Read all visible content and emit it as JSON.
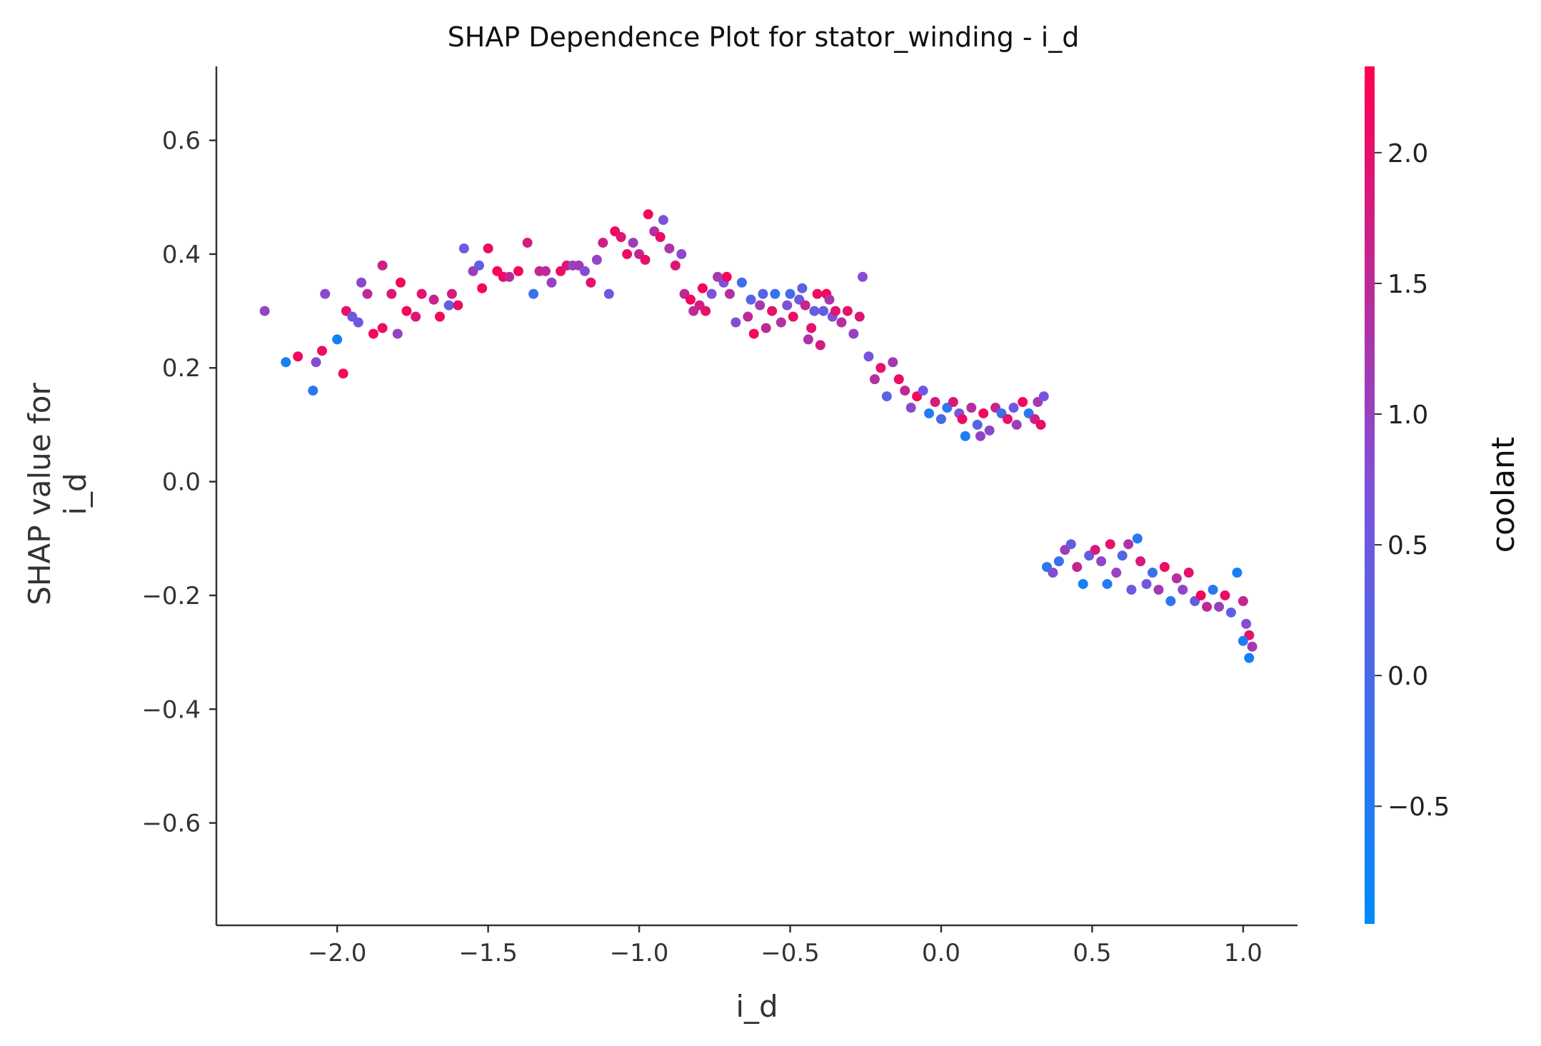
{
  "chart_data": {
    "type": "scatter",
    "title": "SHAP Dependence Plot for stator_winding - i_d",
    "xlabel": "i_d",
    "ylabel": [
      "SHAP value for",
      "i_d"
    ],
    "xlim": [
      -2.4,
      1.18
    ],
    "ylim": [
      -0.78,
      0.73
    ],
    "x_ticks": [
      -2.0,
      -1.5,
      -1.0,
      -0.5,
      0.0,
      0.5,
      1.0
    ],
    "x_tick_labels": [
      "−2.0",
      "−1.5",
      "−1.0",
      "−0.5",
      "0.0",
      "0.5",
      "1.0"
    ],
    "y_ticks": [
      -0.6,
      -0.4,
      -0.2,
      0.0,
      0.2,
      0.4,
      0.6
    ],
    "y_tick_labels": [
      "−0.6",
      "−0.4",
      "−0.2",
      "0.0",
      "0.2",
      "0.4",
      "0.6"
    ],
    "grid": false,
    "colorbar": {
      "label": "coolant",
      "range": [
        -0.95,
        2.33
      ],
      "ticks": [
        -0.5,
        0.0,
        0.5,
        1.0,
        1.5,
        2.0
      ],
      "tick_labels": [
        "−0.5",
        "0.0",
        "0.5",
        "1.0",
        "1.5",
        "2.0"
      ],
      "color_low": "#008afb",
      "color_mid": "#7c52dc",
      "color_high": "#ff0051"
    },
    "series": [
      {
        "points": [
          [
            -2.24,
            0.3,
            1.0
          ],
          [
            -2.17,
            0.21,
            -0.6
          ],
          [
            -2.13,
            0.22,
            2.2
          ],
          [
            -2.08,
            0.16,
            -0.4
          ],
          [
            -2.07,
            0.21,
            0.8
          ],
          [
            -2.05,
            0.23,
            2.1
          ],
          [
            -2.0,
            0.25,
            -0.7
          ],
          [
            -2.04,
            0.33,
            0.9
          ],
          [
            -1.98,
            0.19,
            2.2
          ],
          [
            -1.97,
            0.3,
            2.0
          ],
          [
            -1.95,
            0.29,
            0.6
          ],
          [
            -1.93,
            0.28,
            0.5
          ],
          [
            -1.92,
            0.35,
            0.9
          ],
          [
            -1.9,
            0.33,
            1.5
          ],
          [
            -1.88,
            0.26,
            2.2
          ],
          [
            -1.85,
            0.38,
            1.7
          ],
          [
            -1.85,
            0.27,
            2.1
          ],
          [
            -1.82,
            0.33,
            1.9
          ],
          [
            -1.8,
            0.26,
            1.0
          ],
          [
            -1.79,
            0.35,
            2.2
          ],
          [
            -1.77,
            0.3,
            2.2
          ],
          [
            -1.74,
            0.29,
            1.9
          ],
          [
            -1.72,
            0.33,
            2.0
          ],
          [
            -1.68,
            0.32,
            1.6
          ],
          [
            -1.66,
            0.29,
            2.2
          ],
          [
            -1.63,
            0.31,
            0.3
          ],
          [
            -1.62,
            0.33,
            1.8
          ],
          [
            -1.6,
            0.31,
            2.1
          ],
          [
            -1.58,
            0.41,
            0.6
          ],
          [
            -1.55,
            0.37,
            1.1
          ],
          [
            -1.53,
            0.38,
            0.4
          ],
          [
            -1.52,
            0.34,
            2.2
          ],
          [
            -1.5,
            0.41,
            2.1
          ],
          [
            -1.47,
            0.37,
            2.3
          ],
          [
            -1.45,
            0.36,
            2.2
          ],
          [
            -1.43,
            0.36,
            1.5
          ],
          [
            -1.4,
            0.37,
            2.2
          ],
          [
            -1.37,
            0.42,
            1.8
          ],
          [
            -1.35,
            0.33,
            -0.2
          ],
          [
            -1.33,
            0.37,
            1.6
          ],
          [
            -1.31,
            0.37,
            1.5
          ],
          [
            -1.29,
            0.35,
            1.0
          ],
          [
            -1.26,
            0.37,
            2.1
          ],
          [
            -1.24,
            0.38,
            1.9
          ],
          [
            -1.22,
            0.38,
            1.0
          ],
          [
            -1.2,
            0.38,
            1.2
          ],
          [
            -1.18,
            0.37,
            0.8
          ],
          [
            -1.16,
            0.35,
            2.0
          ],
          [
            -1.14,
            0.39,
            1.0
          ],
          [
            -1.12,
            0.42,
            1.7
          ],
          [
            -1.1,
            0.33,
            0.5
          ],
          [
            -1.08,
            0.44,
            2.2
          ],
          [
            -1.06,
            0.43,
            1.9
          ],
          [
            -1.04,
            0.4,
            2.1
          ],
          [
            -1.02,
            0.42,
            1.1
          ],
          [
            -1.0,
            0.4,
            1.6
          ],
          [
            -0.98,
            0.39,
            2.0
          ],
          [
            -0.97,
            0.47,
            2.2
          ],
          [
            -0.95,
            0.44,
            1.4
          ],
          [
            -0.93,
            0.43,
            2.1
          ],
          [
            -0.92,
            0.46,
            0.7
          ],
          [
            -0.9,
            0.41,
            1.3
          ],
          [
            -0.88,
            0.38,
            1.9
          ],
          [
            -0.86,
            0.4,
            0.9
          ],
          [
            -0.85,
            0.33,
            1.5
          ],
          [
            -0.83,
            0.32,
            2.2
          ],
          [
            -0.82,
            0.3,
            1.5
          ],
          [
            -0.8,
            0.31,
            1.7
          ],
          [
            -0.79,
            0.34,
            2.2
          ],
          [
            -0.78,
            0.3,
            2.0
          ],
          [
            -0.76,
            0.33,
            0.7
          ],
          [
            -0.74,
            0.36,
            1.2
          ],
          [
            -0.72,
            0.35,
            0.6
          ],
          [
            -0.71,
            0.36,
            2.2
          ],
          [
            -0.7,
            0.33,
            1.4
          ],
          [
            -0.68,
            0.28,
            0.8
          ],
          [
            -0.66,
            0.35,
            -0.1
          ],
          [
            -0.64,
            0.29,
            1.5
          ],
          [
            -0.63,
            0.32,
            0.2
          ],
          [
            -0.62,
            0.26,
            2.2
          ],
          [
            -0.6,
            0.31,
            1.2
          ],
          [
            -0.59,
            0.33,
            0.2
          ],
          [
            -0.58,
            0.27,
            1.5
          ],
          [
            -0.56,
            0.3,
            2.0
          ],
          [
            -0.55,
            0.33,
            -0.3
          ],
          [
            -0.53,
            0.28,
            1.4
          ],
          [
            -0.51,
            0.31,
            0.7
          ],
          [
            -0.5,
            0.33,
            0.0
          ],
          [
            -0.49,
            0.29,
            2.1
          ],
          [
            -0.47,
            0.32,
            0.5
          ],
          [
            -0.46,
            0.34,
            0.3
          ],
          [
            -0.45,
            0.31,
            1.6
          ],
          [
            -0.44,
            0.25,
            1.3
          ],
          [
            -0.43,
            0.27,
            2.0
          ],
          [
            -0.42,
            0.3,
            0.4
          ],
          [
            -0.41,
            0.33,
            2.1
          ],
          [
            -0.4,
            0.24,
            1.8
          ],
          [
            -0.39,
            0.3,
            0.4
          ],
          [
            -0.38,
            0.33,
            2.2
          ],
          [
            -0.37,
            0.32,
            1.3
          ],
          [
            -0.36,
            0.29,
            0.7
          ],
          [
            -0.35,
            0.3,
            1.9
          ],
          [
            -0.33,
            0.28,
            1.4
          ],
          [
            -0.31,
            0.3,
            2.0
          ],
          [
            -0.29,
            0.26,
            1.0
          ],
          [
            -0.27,
            0.29,
            1.9
          ],
          [
            -0.26,
            0.36,
            0.8
          ],
          [
            -0.24,
            0.22,
            0.6
          ],
          [
            -0.22,
            0.18,
            1.4
          ],
          [
            -0.2,
            0.2,
            2.0
          ],
          [
            -0.18,
            0.15,
            0.2
          ],
          [
            -0.16,
            0.21,
            1.2
          ],
          [
            -0.14,
            0.18,
            2.1
          ],
          [
            -0.12,
            0.16,
            1.6
          ],
          [
            -0.1,
            0.13,
            0.9
          ],
          [
            -0.08,
            0.15,
            2.2
          ],
          [
            -0.06,
            0.16,
            0.5
          ],
          [
            -0.04,
            0.12,
            -0.5
          ],
          [
            -0.02,
            0.14,
            1.8
          ],
          [
            0.0,
            0.11,
            0.0
          ],
          [
            0.02,
            0.13,
            -0.4
          ],
          [
            0.04,
            0.14,
            1.9
          ],
          [
            0.06,
            0.12,
            0.7
          ],
          [
            0.07,
            0.11,
            2.1
          ],
          [
            0.08,
            0.08,
            -0.6
          ],
          [
            0.1,
            0.13,
            1.4
          ],
          [
            0.12,
            0.1,
            0.2
          ],
          [
            0.13,
            0.08,
            1.0
          ],
          [
            0.14,
            0.12,
            2.2
          ],
          [
            0.16,
            0.09,
            0.9
          ],
          [
            0.18,
            0.13,
            1.6
          ],
          [
            0.2,
            0.12,
            -0.2
          ],
          [
            0.22,
            0.11,
            2.0
          ],
          [
            0.24,
            0.13,
            0.5
          ],
          [
            0.25,
            0.1,
            1.1
          ],
          [
            0.27,
            0.14,
            2.2
          ],
          [
            0.29,
            0.12,
            -0.4
          ],
          [
            0.31,
            0.11,
            1.7
          ],
          [
            0.32,
            0.14,
            1.2
          ],
          [
            0.33,
            0.1,
            2.1
          ],
          [
            0.34,
            0.15,
            0.6
          ],
          [
            0.35,
            -0.15,
            -0.4
          ],
          [
            0.37,
            -0.16,
            0.8
          ],
          [
            0.39,
            -0.14,
            -0.2
          ],
          [
            0.41,
            -0.12,
            1.1
          ],
          [
            0.43,
            -0.11,
            0.3
          ],
          [
            0.45,
            -0.15,
            1.6
          ],
          [
            0.47,
            -0.18,
            -0.6
          ],
          [
            0.49,
            -0.13,
            0.4
          ],
          [
            0.51,
            -0.12,
            1.8
          ],
          [
            0.53,
            -0.14,
            0.9
          ],
          [
            0.55,
            -0.18,
            -0.5
          ],
          [
            0.56,
            -0.11,
            2.0
          ],
          [
            0.58,
            -0.16,
            1.0
          ],
          [
            0.6,
            -0.13,
            0.1
          ],
          [
            0.62,
            -0.11,
            1.3
          ],
          [
            0.63,
            -0.19,
            0.5
          ],
          [
            0.65,
            -0.1,
            -0.4
          ],
          [
            0.66,
            -0.14,
            1.8
          ],
          [
            0.68,
            -0.18,
            0.6
          ],
          [
            0.7,
            -0.16,
            -0.2
          ],
          [
            0.72,
            -0.19,
            1.2
          ],
          [
            0.74,
            -0.15,
            2.1
          ],
          [
            0.76,
            -0.21,
            -0.3
          ],
          [
            0.78,
            -0.17,
            1.4
          ],
          [
            0.8,
            -0.19,
            0.9
          ],
          [
            0.82,
            -0.16,
            2.0
          ],
          [
            0.84,
            -0.21,
            0.4
          ],
          [
            0.86,
            -0.2,
            2.2
          ],
          [
            0.88,
            -0.22,
            1.5
          ],
          [
            0.9,
            -0.19,
            -0.4
          ],
          [
            0.92,
            -0.22,
            1.1
          ],
          [
            0.94,
            -0.2,
            2.1
          ],
          [
            0.96,
            -0.23,
            0.3
          ],
          [
            0.98,
            -0.16,
            -0.6
          ],
          [
            1.0,
            -0.21,
            1.6
          ],
          [
            1.01,
            -0.25,
            0.8
          ],
          [
            1.02,
            -0.27,
            2.0
          ],
          [
            1.0,
            -0.28,
            -0.5
          ],
          [
            1.03,
            -0.29,
            1.2
          ],
          [
            1.02,
            -0.31,
            -0.7
          ]
        ]
      }
    ]
  }
}
